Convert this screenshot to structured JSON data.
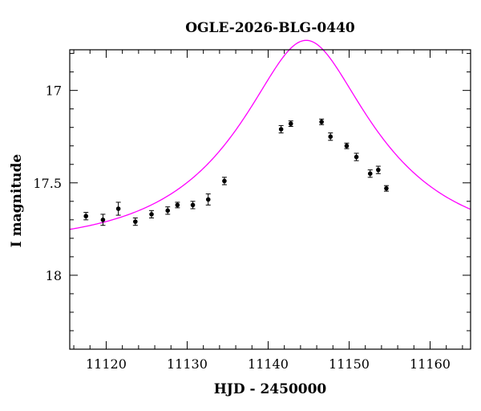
{
  "chart_data": {
    "type": "scatter",
    "title": "OGLE-2026-BLG-0440",
    "xlabel": "HJD - 2450000",
    "ylabel": "I magnitude",
    "xlim": [
      11115.5,
      11165
    ],
    "ylim": [
      18.4,
      16.78
    ],
    "y_inverted": true,
    "x_major_ticks": [
      11120,
      11130,
      11140,
      11150,
      11160
    ],
    "x_minor_step": 2,
    "y_major_ticks": [
      17,
      17.5,
      18
    ],
    "y_minor_step": 0.1,
    "x_tick_labels": [
      "11120",
      "11130",
      "11140",
      "11150",
      "11160"
    ],
    "y_tick_labels": [
      "17",
      "17.5",
      "18"
    ],
    "grid": false,
    "legend": "none",
    "colors": {
      "model": "#ff00ff",
      "points": "#000000"
    },
    "series": [
      {
        "kind": "points_with_errorbars",
        "x": [
          11117.5,
          11119.6,
          11121.5,
          11123.6,
          11125.6,
          11127.6,
          11128.8,
          11130.7,
          11132.6,
          11134.6,
          11141.6,
          11142.8,
          11146.6,
          11147.7,
          11149.7,
          11150.9,
          11152.6,
          11153.6,
          11154.6
        ],
        "y": [
          17.68,
          17.7,
          17.64,
          17.71,
          17.67,
          17.65,
          17.62,
          17.62,
          17.59,
          17.49,
          17.21,
          17.18,
          17.17,
          17.25,
          17.3,
          17.36,
          17.45,
          17.43,
          17.53
        ],
        "err": [
          0.02,
          0.03,
          0.035,
          0.02,
          0.02,
          0.02,
          0.015,
          0.02,
          0.03,
          0.02,
          0.02,
          0.015,
          0.015,
          0.02,
          0.015,
          0.02,
          0.02,
          0.02,
          0.015
        ]
      },
      {
        "kind": "model_curve",
        "params": {
          "t0": 11144.7,
          "u0": 0.38,
          "tE": 16.5,
          "m_base": 17.836
        }
      }
    ]
  }
}
